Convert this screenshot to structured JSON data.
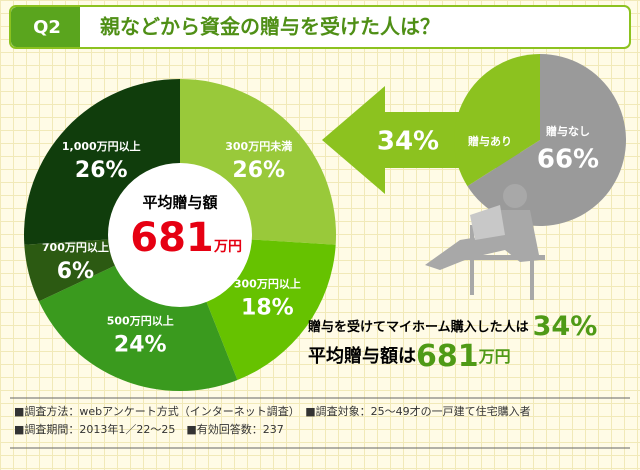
{
  "header": {
    "tag": "Q2",
    "title": "親などから資金の贈与を受けた人は？"
  },
  "chart_data": [
    {
      "type": "pie",
      "categories": [
        "300万円未満",
        "300万円以上",
        "500万円以上",
        "700万円以上",
        "1,000万円以上"
      ],
      "values": [
        26,
        18,
        24,
        6,
        26
      ],
      "value_labels": [
        "26%",
        "18%",
        "24%",
        "6%",
        "26%"
      ],
      "colors": [
        "#99c93a",
        "#66c200",
        "#3a9a1e",
        "#2c5a12",
        "#103d0c"
      ],
      "center_label": "平均贈与額",
      "center_value": 681,
      "center_unit": "万円"
    },
    {
      "type": "pie",
      "categories": [
        "贈与なし",
        "贈与あり"
      ],
      "values": [
        66,
        34
      ],
      "value_labels": [
        "66%",
        "34%"
      ],
      "colors": [
        "#9a9a9a",
        "#8cc21f"
      ]
    }
  ],
  "summary": {
    "line1": "贈与を受けてマイホーム購入した人は",
    "line1_value": "34%",
    "line2": "平均贈与額は",
    "line2_value": 681,
    "line2_unit": "万円"
  },
  "footer": [
    "■調査方法：webアンケート方式（インターネット調査）　■調査対象：25～49才の一戸建て住宅購入者",
    "■調査期間：2013年1／22～25　■有効回答数：237"
  ]
}
